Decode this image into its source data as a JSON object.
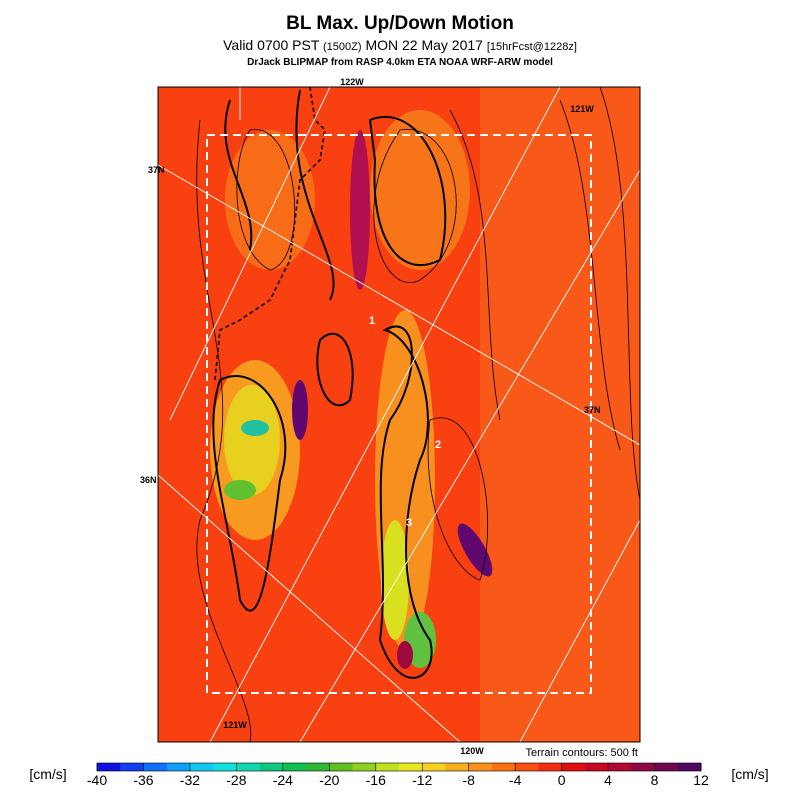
{
  "header": {
    "title": "BL Max. Up/Down Motion",
    "valid": "Valid 0700 PST",
    "utc": "(1500Z)",
    "date": "MON 22 May 2017",
    "forecast": "[15hrFcst@1228z]",
    "model": "DrJack BLIPMAP from RASP 4.0km ETA NOAA WRF-ARW model"
  },
  "map": {
    "labels": {
      "lon_122w": "122W",
      "lon_121w_top": "121W",
      "lat_37n_left": "37N",
      "lat_37n_right": "37N",
      "lat_36n": "36N",
      "lon_121w_bottom": "121W",
      "lon_120w": "120W"
    },
    "points": [
      "1",
      "2",
      "3"
    ],
    "terrain_note": "Terrain contours: 500 ft"
  },
  "colorbar": {
    "unit": "[cm/s]",
    "lim": [
      -40,
      12
    ],
    "ticks": [
      -40,
      -36,
      -32,
      -28,
      -24,
      -20,
      -16,
      -12,
      -8,
      -4,
      0,
      4,
      8,
      12
    ],
    "colors": [
      "#1010e0",
      "#1040f0",
      "#1070f8",
      "#10a0f8",
      "#10c8f0",
      "#10e0e0",
      "#10d8b0",
      "#10c880",
      "#10c050",
      "#30b830",
      "#60c020",
      "#90d020",
      "#c0e020",
      "#e8e820",
      "#f8d020",
      "#f8b020",
      "#f89018",
      "#f87010",
      "#f85010",
      "#f03010",
      "#e01010",
      "#c80820",
      "#b00830",
      "#900840",
      "#700850",
      "#500860"
    ]
  }
}
